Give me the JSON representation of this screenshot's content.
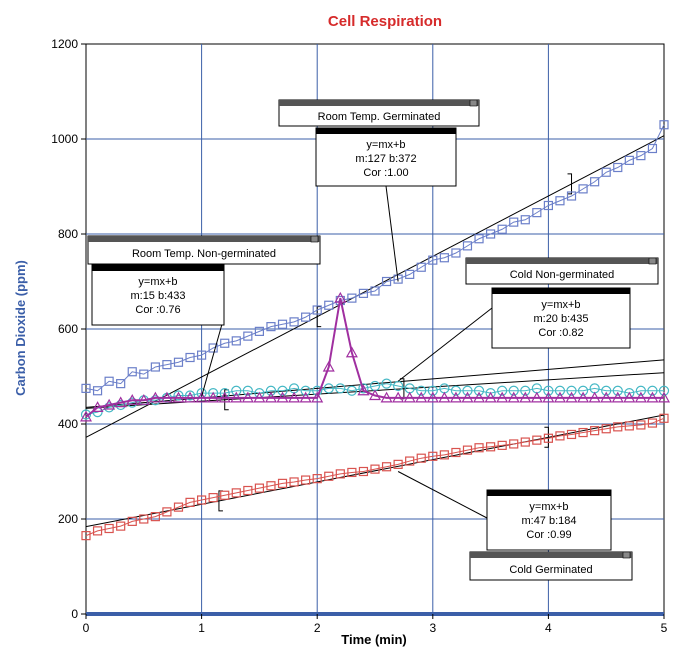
{
  "chart_data": {
    "type": "scatter",
    "title": "Cell Respiration",
    "xlabel": "Time (min)",
    "ylabel": "Carbon Dioxide (ppm)",
    "xlim": [
      0,
      5
    ],
    "ylim": [
      0,
      1200
    ],
    "x_ticks": [
      "0",
      "1",
      "2",
      "3",
      "4",
      "5"
    ],
    "y_ticks": [
      "0",
      "200",
      "400",
      "600",
      "800",
      "1000",
      "1200"
    ],
    "grid": true,
    "colors": {
      "title": "#d62b2b",
      "ylabel": "#3a5ea8",
      "xlabel": "#000000",
      "grid": "#3b5fa8",
      "baseline": "#3b5fa8"
    },
    "series": [
      {
        "name": "Room Temp. Germinated",
        "color": "#6b7fc9",
        "marker": "square",
        "x": [
          0,
          0.1,
          0.2,
          0.3,
          0.4,
          0.5,
          0.6,
          0.7,
          0.8,
          0.9,
          1.0,
          1.1,
          1.2,
          1.3,
          1.4,
          1.5,
          1.6,
          1.7,
          1.8,
          1.9,
          2.0,
          2.1,
          2.2,
          2.3,
          2.4,
          2.5,
          2.6,
          2.7,
          2.8,
          2.9,
          3.0,
          3.1,
          3.2,
          3.3,
          3.4,
          3.5,
          3.6,
          3.7,
          3.8,
          3.9,
          4.0,
          4.1,
          4.2,
          4.3,
          4.4,
          4.5,
          4.6,
          4.7,
          4.8,
          4.9,
          5.0
        ],
        "y": [
          475,
          470,
          490,
          485,
          510,
          505,
          520,
          525,
          530,
          540,
          545,
          560,
          570,
          575,
          585,
          595,
          605,
          610,
          615,
          625,
          640,
          650,
          660,
          665,
          675,
          680,
          700,
          705,
          715,
          730,
          745,
          750,
          760,
          775,
          790,
          800,
          810,
          825,
          830,
          845,
          860,
          870,
          880,
          895,
          910,
          930,
          940,
          955,
          965,
          980,
          1030
        ]
      },
      {
        "name": "Room Temp. Non-germinated",
        "color": "#45b8c5",
        "marker": "circle",
        "x": [
          0,
          0.1,
          0.2,
          0.3,
          0.4,
          0.5,
          0.6,
          0.7,
          0.8,
          0.9,
          1.0,
          1.1,
          1.2,
          1.3,
          1.4,
          1.5,
          1.6,
          1.7,
          1.8,
          1.9,
          2.0,
          2.1,
          2.2,
          2.3,
          2.4,
          2.5,
          2.6,
          2.7,
          2.8,
          2.9,
          3.0,
          3.1,
          3.2,
          3.3,
          3.4,
          3.5,
          3.6,
          3.7,
          3.8,
          3.9,
          4.0,
          4.1,
          4.2,
          4.3,
          4.4,
          4.5,
          4.6,
          4.7,
          4.8,
          4.9,
          5.0
        ],
        "y": [
          420,
          425,
          435,
          440,
          445,
          450,
          450,
          455,
          460,
          460,
          465,
          465,
          465,
          470,
          470,
          465,
          470,
          470,
          475,
          470,
          470,
          475,
          475,
          470,
          475,
          480,
          485,
          480,
          475,
          470,
          470,
          475,
          470,
          470,
          470,
          465,
          470,
          470,
          470,
          475,
          470,
          470,
          470,
          470,
          475,
          470,
          470,
          465,
          470,
          470,
          470
        ]
      },
      {
        "name": "Cold Non-germinated",
        "color": "#a02fa0",
        "marker": "triangle",
        "x": [
          0,
          0.1,
          0.2,
          0.3,
          0.4,
          0.5,
          0.6,
          0.7,
          0.8,
          0.9,
          1.0,
          1.1,
          1.2,
          1.3,
          1.4,
          1.5,
          1.6,
          1.7,
          1.8,
          1.9,
          2.0,
          2.1,
          2.2,
          2.3,
          2.4,
          2.5,
          2.6,
          2.7,
          2.8,
          2.9,
          3.0,
          3.1,
          3.2,
          3.3,
          3.4,
          3.5,
          3.6,
          3.7,
          3.8,
          3.9,
          4.0,
          4.1,
          4.2,
          4.3,
          4.4,
          4.5,
          4.6,
          4.7,
          4.8,
          4.9,
          5.0
        ],
        "y": [
          415,
          435,
          440,
          445,
          450,
          450,
          455,
          455,
          455,
          455,
          455,
          455,
          455,
          455,
          455,
          455,
          455,
          455,
          455,
          455,
          455,
          520,
          665,
          550,
          470,
          460,
          455,
          455,
          455,
          455,
          455,
          455,
          455,
          455,
          455,
          455,
          455,
          455,
          455,
          455,
          455,
          455,
          455,
          455,
          455,
          455,
          455,
          455,
          455,
          455,
          455
        ]
      },
      {
        "name": "Cold Germinated",
        "color": "#d9534f",
        "marker": "square",
        "x": [
          0,
          0.1,
          0.2,
          0.3,
          0.4,
          0.5,
          0.6,
          0.7,
          0.8,
          0.9,
          1.0,
          1.1,
          1.2,
          1.3,
          1.4,
          1.5,
          1.6,
          1.7,
          1.8,
          1.9,
          2.0,
          2.1,
          2.2,
          2.3,
          2.4,
          2.5,
          2.6,
          2.7,
          2.8,
          2.9,
          3.0,
          3.1,
          3.2,
          3.3,
          3.4,
          3.5,
          3.6,
          3.7,
          3.8,
          3.9,
          4.0,
          4.1,
          4.2,
          4.3,
          4.4,
          4.5,
          4.6,
          4.7,
          4.8,
          4.9,
          5.0
        ],
        "y": [
          165,
          175,
          180,
          185,
          195,
          200,
          205,
          215,
          225,
          235,
          240,
          245,
          250,
          255,
          260,
          265,
          270,
          275,
          278,
          282,
          285,
          290,
          295,
          298,
          300,
          305,
          310,
          315,
          322,
          328,
          332,
          335,
          340,
          345,
          350,
          352,
          355,
          358,
          362,
          366,
          370,
          375,
          378,
          382,
          386,
          390,
          394,
          396,
          398,
          402,
          412
        ]
      }
    ],
    "fits": [
      {
        "series": "Room Temp. Germinated",
        "equation": "y=mx+b",
        "m": 127,
        "b": 372,
        "cor": "1.00",
        "bracket_x": [
          2.0,
          4.2
        ]
      },
      {
        "series": "Room Temp. Non-germinated",
        "equation": "y=mx+b",
        "m": 15,
        "b": 433,
        "cor": "0.76",
        "bracket_x": [
          1.2,
          2.75
        ]
      },
      {
        "series": "Cold Non-germinated",
        "equation": "y=mx+b",
        "m": 20,
        "b": 435,
        "cor": "0.82",
        "bracket_x": [
          0,
          5
        ]
      },
      {
        "series": "Cold Germinated",
        "equation": "y=mx+b",
        "m": 47,
        "b": 184,
        "cor": "0.99",
        "bracket_x": [
          1.15,
          4.0
        ]
      }
    ],
    "annotations": [
      {
        "title": "Room Temp. Germinated",
        "eq": "y=mx+b",
        "params": "m:127  b:372",
        "cor": "Cor :1.00",
        "pointer": [
          2.7,
          700
        ]
      },
      {
        "title": "Room Temp. Non-germinated",
        "eq": "y=mx+b",
        "params": "m:15  b:433",
        "cor": "Cor :0.76",
        "pointer": [
          1.0,
          458
        ]
      },
      {
        "title": "Cold Non-germinated",
        "eq": "y=mx+b",
        "params": "m:20  b:435",
        "cor": "Cor :0.82",
        "pointer": [
          2.7,
          490
        ]
      },
      {
        "title": "Cold Germinated",
        "eq": "y=mx+b",
        "params": "m:47  b:184",
        "cor": "Cor :0.99",
        "pointer": [
          2.7,
          300
        ]
      }
    ]
  }
}
